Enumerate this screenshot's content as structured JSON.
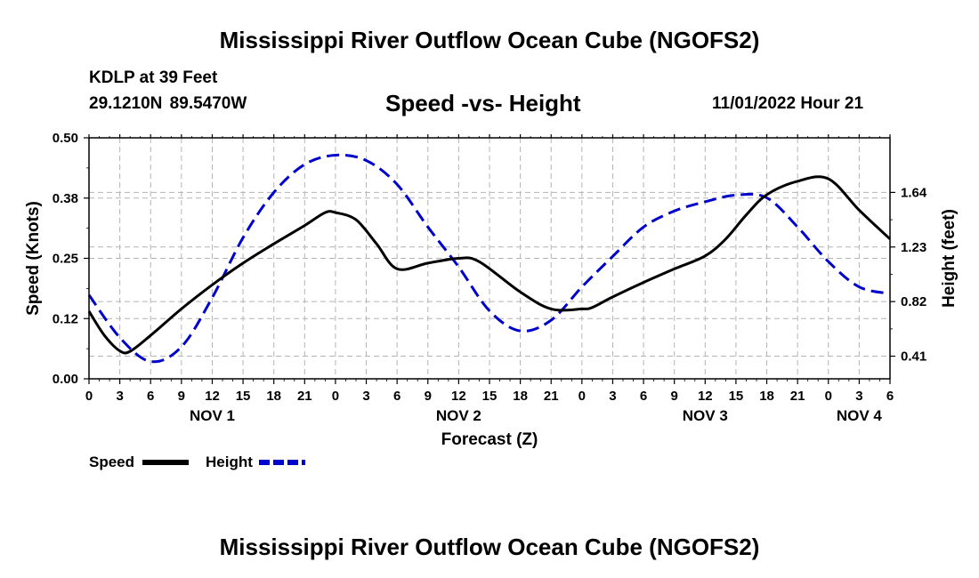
{
  "header": {
    "title": "Mississippi River Outflow Ocean Cube (NGOFS2)",
    "station": "KDLP at 39 Feet",
    "coords": "29.1210N  89.5470W",
    "subtitle": "Speed -vs- Height",
    "datetime": "11/01/2022 Hour 21"
  },
  "footer": {
    "title": "Mississippi River Outflow Ocean Cube (NGOFS2)"
  },
  "chart_data": {
    "type": "line",
    "title": "Speed -vs- Height",
    "xlabel": "Forecast (Z)",
    "ylabel": "Speed (Knots)",
    "y2label": "Height (feet)",
    "xlim": [
      0,
      78
    ],
    "ylim": [
      0,
      0.5
    ],
    "y2lim": [
      0.24,
      2.05
    ],
    "x_ticks": [
      0,
      3,
      6,
      9,
      12,
      15,
      18,
      21,
      24,
      27,
      30,
      33,
      36,
      39,
      42,
      45,
      48,
      51,
      54,
      57,
      60,
      63,
      66,
      69,
      72,
      75,
      78
    ],
    "x_tick_labels": [
      "0",
      "3",
      "6",
      "9",
      "12",
      "15",
      "18",
      "21",
      "0",
      "3",
      "6",
      "9",
      "12",
      "15",
      "18",
      "21",
      "0",
      "3",
      "6",
      "9",
      "12",
      "15",
      "18",
      "21",
      "0",
      "3",
      "6"
    ],
    "date_labels": [
      {
        "x": 12,
        "label": "NOV 1"
      },
      {
        "x": 36,
        "label": "NOV 2"
      },
      {
        "x": 60,
        "label": "NOV 3"
      },
      {
        "x": 75,
        "label": "NOV 4"
      }
    ],
    "y_ticks": [
      0,
      0.125,
      0.25,
      0.375,
      0.5
    ],
    "y_tick_labels": [
      "0.00",
      "0.12",
      "0.25",
      "0.38",
      "0.50"
    ],
    "y2_ticks": [
      0.41,
      0.82,
      1.23,
      1.64
    ],
    "y2_tick_labels": [
      "0.41",
      "0.82",
      "1.23",
      "1.64"
    ],
    "grid": true,
    "series": [
      {
        "name": "Speed",
        "axis": "left",
        "color": "#000000",
        "dash": "solid",
        "x": [
          0,
          1.5,
          3,
          4,
          6,
          9,
          12,
          15,
          18,
          21,
          23,
          24,
          26,
          28,
          30,
          33,
          36,
          38,
          42,
          45,
          48,
          49,
          51,
          54,
          57,
          60,
          62,
          64,
          66,
          69,
          72,
          75,
          78
        ],
        "values": [
          0.14,
          0.09,
          0.058,
          0.057,
          0.09,
          0.145,
          0.195,
          0.24,
          0.28,
          0.318,
          0.345,
          0.345,
          0.33,
          0.28,
          0.228,
          0.24,
          0.25,
          0.243,
          0.18,
          0.145,
          0.145,
          0.148,
          0.17,
          0.2,
          0.228,
          0.255,
          0.29,
          0.34,
          0.382,
          0.41,
          0.415,
          0.35,
          0.29
        ]
      },
      {
        "name": "Height",
        "axis": "right",
        "color": "#0000cc",
        "dash": "dashed",
        "x": [
          0,
          3,
          6,
          9,
          12,
          15,
          18,
          21,
          24,
          27,
          30,
          33,
          36,
          39,
          42,
          45,
          48,
          51,
          54,
          57,
          60,
          63,
          66,
          69,
          72,
          75,
          78
        ],
        "values": [
          0.87,
          0.55,
          0.37,
          0.48,
          0.85,
          1.3,
          1.64,
          1.85,
          1.92,
          1.88,
          1.7,
          1.38,
          1.08,
          0.75,
          0.6,
          0.68,
          0.93,
          1.16,
          1.38,
          1.5,
          1.57,
          1.62,
          1.6,
          1.38,
          1.12,
          0.93,
          0.88
        ]
      }
    ],
    "legend": [
      {
        "label": "Speed",
        "color": "#000000",
        "dash": "solid"
      },
      {
        "label": "Height",
        "color": "#0000cc",
        "dash": "dashed"
      }
    ],
    "legend_position": "bottom-left"
  }
}
